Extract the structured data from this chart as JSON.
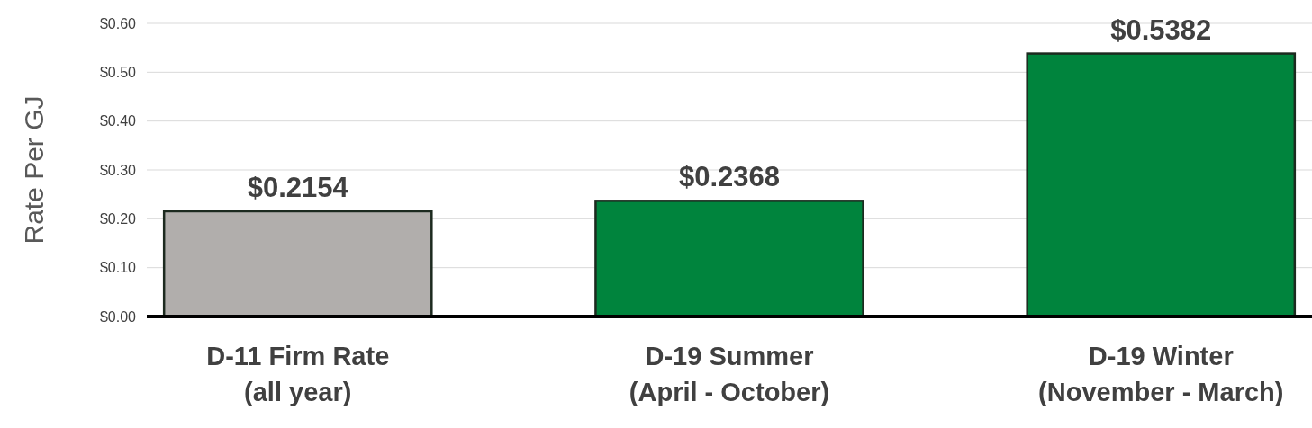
{
  "chart_data": {
    "type": "bar",
    "ylabel": "Rate Per GJ",
    "categories": [
      "D-11 Firm Rate\n(all year)",
      "D-19 Summer\n(April - October)",
      "D-19 Winter\n(November - March)"
    ],
    "values": [
      0.2154,
      0.2368,
      0.5382
    ],
    "colors": [
      "#b1aeac",
      "#00843d",
      "#00843d"
    ],
    "value_labels": [
      "$0.2154",
      "$0.2368",
      "$0.5382"
    ],
    "ylim": [
      0,
      0.6
    ],
    "yticks": [
      {
        "value": 0,
        "label": "$0.00"
      },
      {
        "value": 0.1,
        "label": "$0.10"
      },
      {
        "value": 0.2,
        "label": "$0.20"
      },
      {
        "value": 0.3,
        "label": "$0.30"
      },
      {
        "value": 0.4,
        "label": "$0.40"
      },
      {
        "value": 0.5,
        "label": "$0.50"
      },
      {
        "value": 0.6,
        "label": "$0.60"
      }
    ],
    "grid": "y"
  }
}
